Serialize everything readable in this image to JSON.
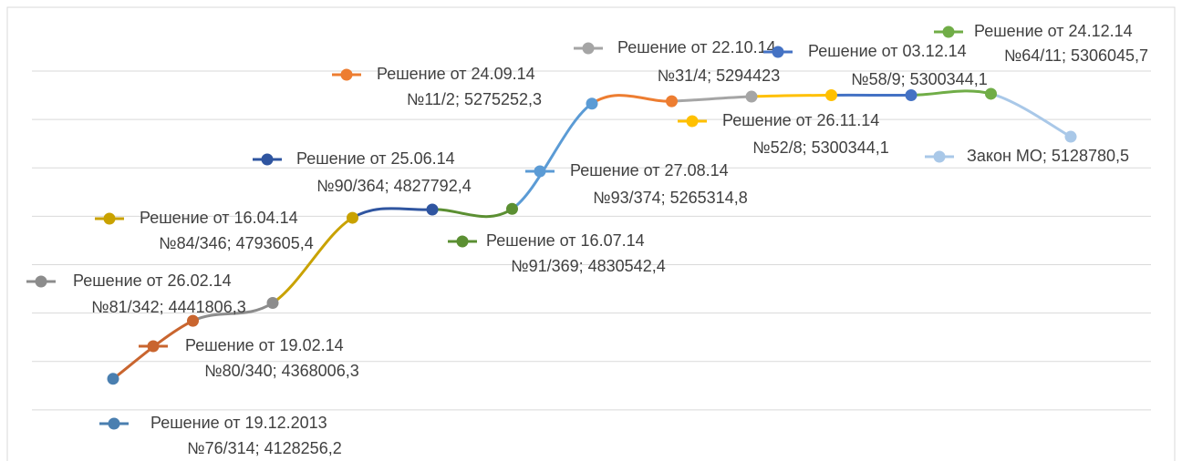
{
  "chart_data": {
    "type": "line",
    "values": [
      4128256.2,
      4368006.3,
      4441806.3,
      4793605.4,
      4827792.4,
      4830542.4,
      5265314.8,
      5275252.3,
      5294423,
      5300344.1,
      5300344.1,
      5306045.7,
      5128780.5
    ],
    "labels": [
      [
        "Решение от 19.12.2013",
        "№76/314; 4128256,2"
      ],
      [
        "Решение от 19.02.14",
        "№80/340; 4368006,3"
      ],
      [
        "Решение от 26.02.14",
        "№81/342; 4441806,3"
      ],
      [
        "Решение от 16.04.14",
        "№84/346; 4793605,4"
      ],
      [
        "Решение от 25.06.14",
        "№90/364; 4827792,4"
      ],
      [
        "Решение от 16.07.14",
        "№91/369; 4830542,4"
      ],
      [
        "Решение от 27.08.14",
        "№93/374; 5265314,8"
      ],
      [
        "Решение от 24.09.14",
        "№11/2; 5275252,3"
      ],
      [
        "Решение от 22.10.14",
        "№31/4; 5294423"
      ],
      [
        "Решение от 26.11.14",
        "№52/8; 5300344,1"
      ],
      [
        "Решение от 03.12.14",
        "№58/9; 5300344,1"
      ],
      [
        "Решение от 24.12.14",
        "№64/11; 5306045,7"
      ],
      [
        "Закон МО; 5128780,5"
      ]
    ],
    "colors": [
      "#4a7fb0",
      "#c9652f",
      "#8c8c8c",
      "#c9a200",
      "#2f55a0",
      "#5b8f32",
      "#5b9bd5",
      "#ed7d31",
      "#a5a5a5",
      "#ffc000",
      "#4472c4",
      "#70ad47",
      "#a9c8e8"
    ],
    "ylim": [
      3800000,
      5400000
    ],
    "yticks": [
      4000000,
      4200000,
      4400000,
      4600000,
      4800000,
      5000000,
      5200000,
      5400000
    ],
    "grid": true,
    "smooth": true
  }
}
